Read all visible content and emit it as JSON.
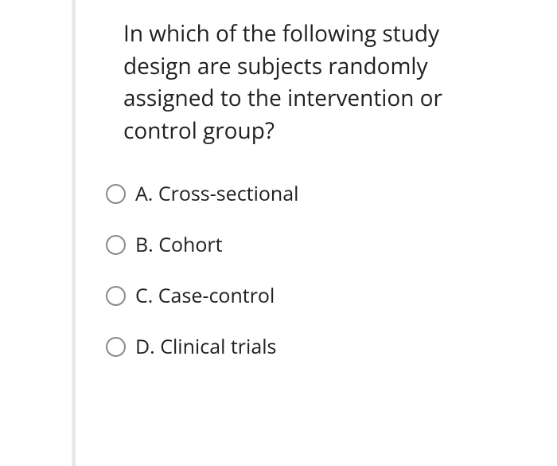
{
  "question": {
    "text": "In which of the following study design are subjects randomly assigned to the intervention or control group?",
    "text_color": "#212121",
    "fontsize": 28
  },
  "options": [
    {
      "letter": "A",
      "label": "A. Cross-sectional",
      "selected": false
    },
    {
      "letter": "B",
      "label": "B. Cohort",
      "selected": false
    },
    {
      "letter": "C",
      "label": "C. Case-control",
      "selected": false
    },
    {
      "letter": "D",
      "label": "D. Clinical trials",
      "selected": false
    }
  ],
  "styling": {
    "background_color": "#ffffff",
    "left_divider_color": "#e8e8e8",
    "radio_border_color": "#8a8a8a",
    "option_fontsize": 25,
    "radio_size": 25
  }
}
